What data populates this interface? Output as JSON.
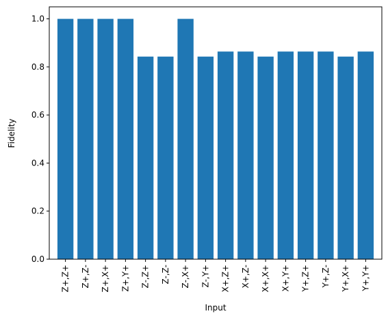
{
  "chart_data": {
    "type": "bar",
    "categories": [
      "Z+,Z+",
      "Z+,Z-",
      "Z+,X+",
      "Z+,Y+",
      "Z-,Z+",
      "Z-,Z-",
      "Z-,X+",
      "Z-,Y+",
      "X+,Z+",
      "X+,Z-",
      "X+,X+",
      "X+,Y+",
      "Y+,Z+",
      "Y+,Z-",
      "Y+,X+",
      "Y+,Y+"
    ],
    "values": [
      1.0,
      1.0,
      1.0,
      1.0,
      0.843,
      0.843,
      1.0,
      0.843,
      0.864,
      0.864,
      0.843,
      0.864,
      0.864,
      0.864,
      0.843,
      0.864
    ],
    "title": "",
    "xlabel": "Input",
    "ylabel": "Fidelity",
    "ylim": [
      0,
      1.05
    ],
    "yticks": [
      "0.0",
      "0.2",
      "0.4",
      "0.6",
      "0.8",
      "1.0"
    ],
    "grid": false,
    "bar_color": "#1f77b4"
  }
}
